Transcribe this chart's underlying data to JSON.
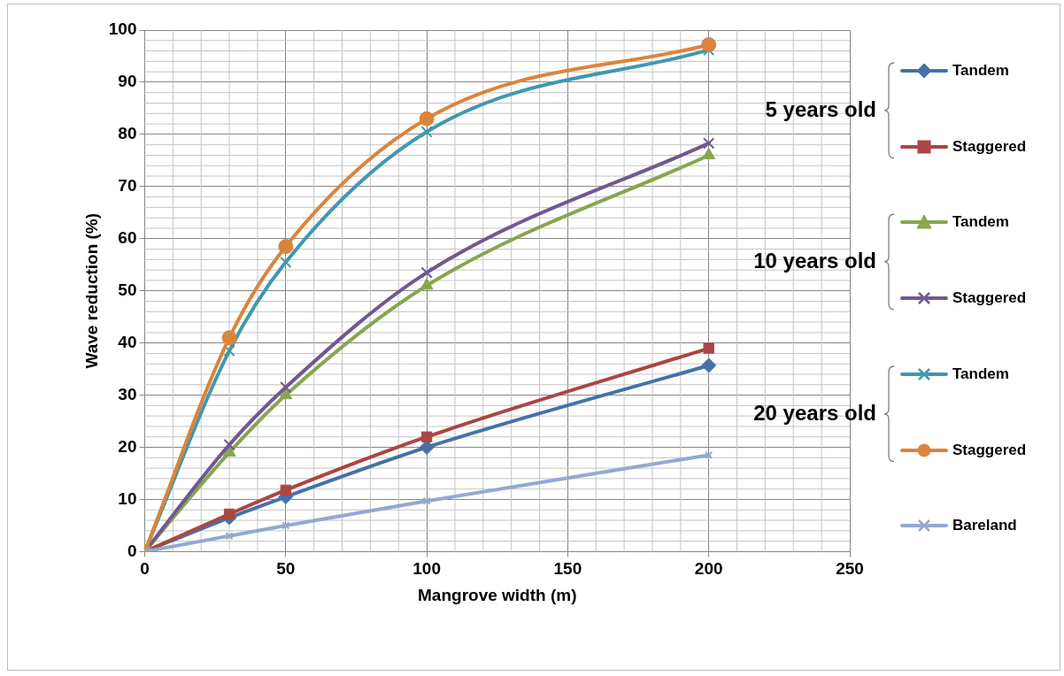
{
  "chart_data": {
    "type": "line",
    "xlabel": "Mangrove width (m)",
    "ylabel": "Wave reduction (%)",
    "x": [
      0,
      30,
      50,
      100,
      200
    ],
    "xlim": [
      0,
      250
    ],
    "xticks": [
      0,
      50,
      100,
      150,
      200,
      250
    ],
    "ylim": [
      0,
      100
    ],
    "yticks": [
      0,
      10,
      20,
      30,
      40,
      50,
      60,
      70,
      80,
      90,
      100
    ],
    "grid": true,
    "legend": "right",
    "line_style": "solid",
    "annotations": [
      "5 years old",
      "10 years old",
      "20 years old"
    ],
    "series": [
      {
        "name": "Tandem",
        "color": "#4472a8",
        "marker": "diamond",
        "values": [
          0,
          6.5,
          10.5,
          20,
          35.7
        ]
      },
      {
        "name": "Staggered",
        "color": "#aa4643",
        "marker": "square",
        "values": [
          0,
          7.2,
          11.8,
          22,
          39
        ]
      },
      {
        "name": "Tandem",
        "color": "#89a54e",
        "marker": "triangle",
        "values": [
          0,
          19,
          30,
          51,
          76
        ]
      },
      {
        "name": "Staggered",
        "color": "#71588f",
        "marker": "cross",
        "values": [
          0,
          20.5,
          31.5,
          53.5,
          78.3
        ]
      },
      {
        "name": "Tandem",
        "color": "#4198af",
        "marker": "cross",
        "values": [
          0,
          38.5,
          55.5,
          80.5,
          96.2
        ]
      },
      {
        "name": "Staggered",
        "color": "#db843d",
        "marker": "circle",
        "values": [
          0,
          41,
          58.5,
          83,
          97.2
        ]
      },
      {
        "name": "Bareland",
        "color": "#93a9cf",
        "marker": "cross",
        "values": [
          0,
          3,
          5,
          9.7,
          18.5
        ]
      }
    ]
  }
}
